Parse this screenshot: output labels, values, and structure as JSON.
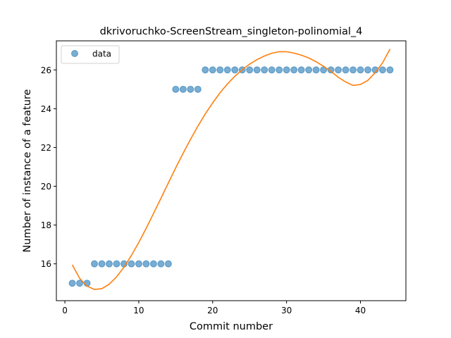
{
  "chart_data": {
    "type": "scatter",
    "title": "dkrivoruchko-ScreenStream_singleton-polinomial_4",
    "xlabel": "Commit number",
    "ylabel": "Number of instance of a feature",
    "xlim": [
      -1.15,
      46.15
    ],
    "ylim": [
      14.1,
      27.5
    ],
    "xticks": [
      0,
      10,
      20,
      30,
      40
    ],
    "yticks": [
      16,
      18,
      20,
      22,
      24,
      26
    ],
    "grid": false,
    "legend_position": "top-left",
    "series": [
      {
        "name": "data",
        "kind": "scatter",
        "color": "#1f77b4",
        "x": [
          1,
          2,
          3,
          4,
          5,
          6,
          7,
          8,
          9,
          10,
          11,
          12,
          13,
          14,
          15,
          16,
          17,
          18,
          19,
          20,
          21,
          22,
          23,
          24,
          25,
          26,
          27,
          28,
          29,
          30,
          31,
          32,
          33,
          34,
          35,
          36,
          37,
          38,
          39,
          40,
          41,
          42,
          43,
          44
        ],
        "y": [
          15,
          15,
          15,
          16,
          16,
          16,
          16,
          16,
          16,
          16,
          16,
          16,
          16,
          16,
          25,
          25,
          25,
          25,
          26,
          26,
          26,
          26,
          26,
          26,
          26,
          26,
          26,
          26,
          26,
          26,
          26,
          26,
          26,
          26,
          26,
          26,
          26,
          26,
          26,
          26,
          26,
          26,
          26,
          26
        ]
      },
      {
        "kind": "line",
        "color": "#ff7f0e",
        "x": [
          1,
          2,
          3,
          4,
          5,
          6,
          7,
          8,
          9,
          10,
          11,
          12,
          13,
          14,
          15,
          16,
          17,
          18,
          19,
          20,
          21,
          22,
          23,
          24,
          25,
          26,
          27,
          28,
          29,
          30,
          31,
          32,
          33,
          34,
          35,
          36,
          37,
          38,
          39,
          40,
          41,
          42,
          43,
          44
        ],
        "y": [
          15.95,
          15.25,
          14.85,
          14.68,
          14.72,
          14.95,
          15.33,
          15.83,
          16.43,
          17.1,
          17.83,
          18.6,
          19.38,
          20.17,
          20.95,
          21.7,
          22.42,
          23.1,
          23.73,
          24.3,
          24.82,
          25.28,
          25.67,
          26.01,
          26.3,
          26.53,
          26.72,
          26.86,
          26.94,
          26.94,
          26.87,
          26.76,
          26.62,
          26.42,
          26.19,
          25.93,
          25.62,
          25.38,
          25.2,
          25.25,
          25.46,
          25.86,
          26.37,
          27.08
        ]
      }
    ]
  }
}
